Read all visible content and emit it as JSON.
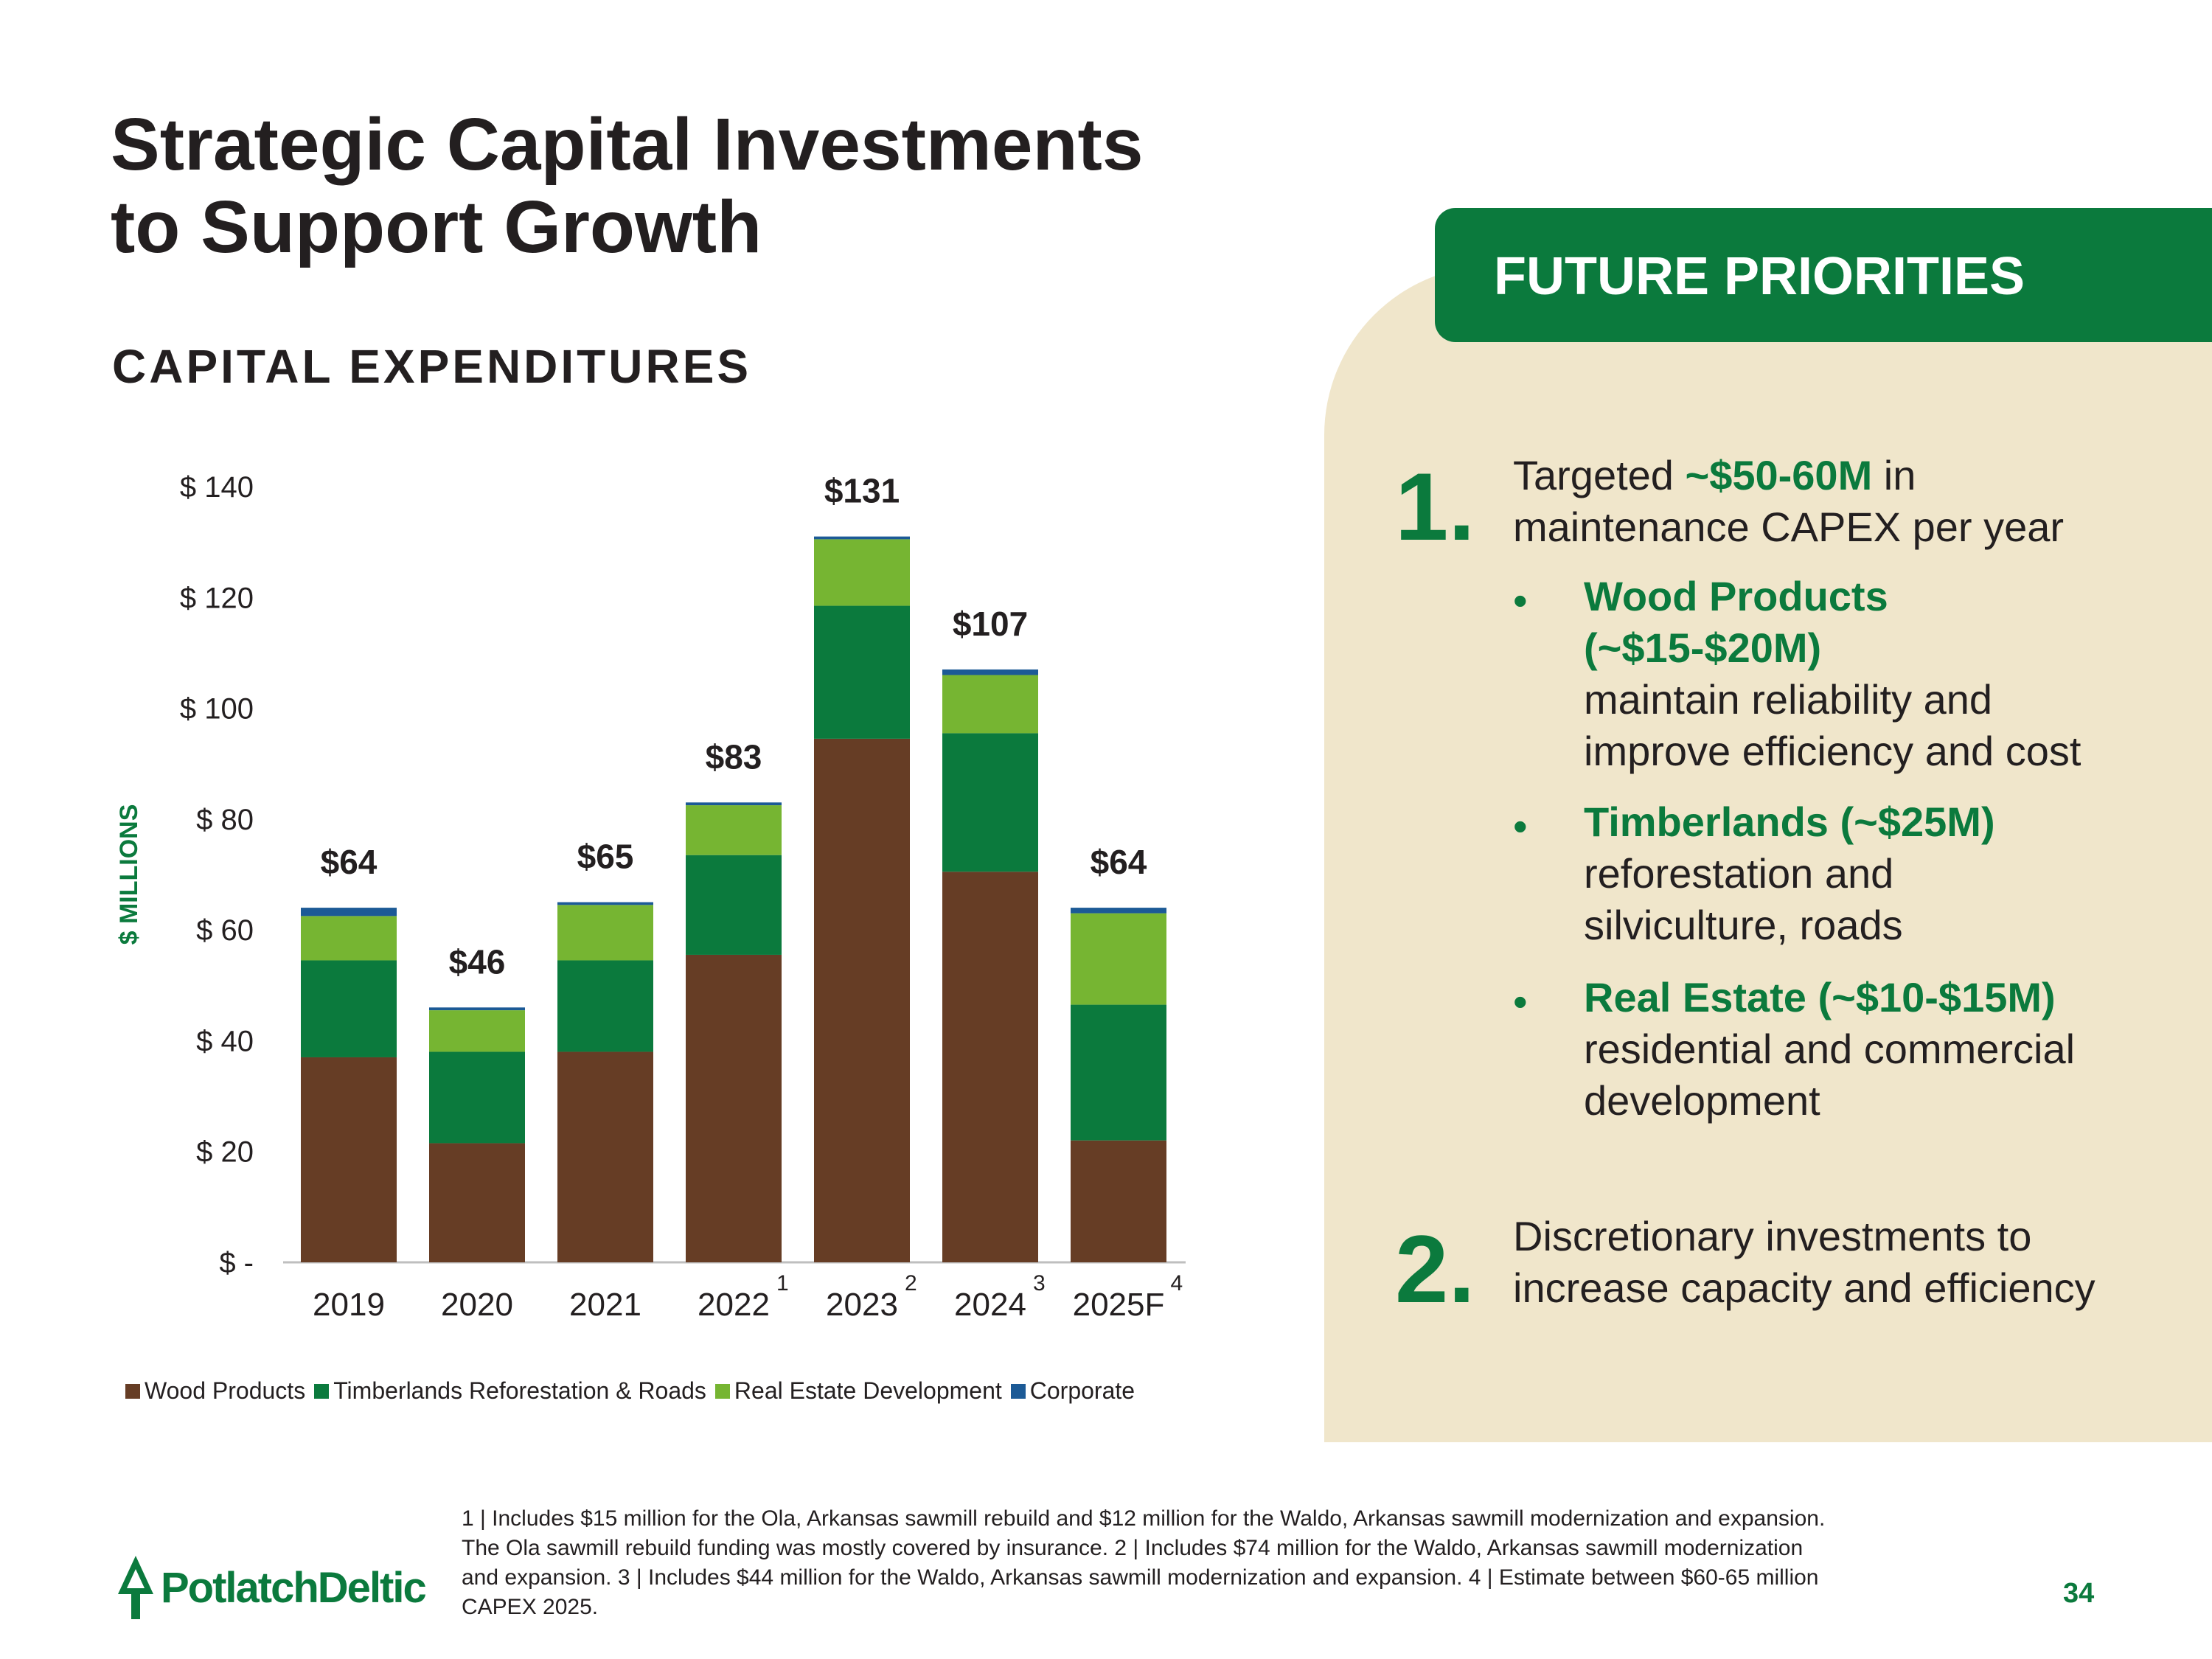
{
  "title_line1": "Strategic Capital Investments",
  "title_line2": "to Support Growth",
  "subtitle": "CAPITAL EXPENDITURES",
  "chart_data": {
    "type": "bar",
    "stacked": true,
    "ylabel": "$ MILLIONS",
    "ylim": [
      0,
      140
    ],
    "yticks": [
      0,
      20,
      40,
      60,
      80,
      100,
      120,
      140
    ],
    "ytick_labels": [
      "$ -",
      "$ 20",
      "$ 40",
      "$ 60",
      "$ 80",
      "$ 100",
      "$ 120",
      "$ 140"
    ],
    "categories": [
      "2019",
      "2020",
      "2021",
      "2022",
      "2023",
      "2024",
      "2025F"
    ],
    "superscripts": [
      "",
      "",
      "",
      "1",
      "2",
      "3",
      "4"
    ],
    "totals": [
      64,
      46,
      65,
      83,
      131,
      107,
      64
    ],
    "total_labels": [
      "$64",
      "$46",
      "$65",
      "$83",
      "$131",
      "$107",
      "$64"
    ],
    "series": [
      {
        "name": "Wood Products",
        "color": "#663d25",
        "values": [
          37,
          21.5,
          38,
          55.5,
          94.5,
          70.5,
          22
        ]
      },
      {
        "name": "Timberlands Reforestation & Roads",
        "color": "#0b7a3d",
        "values": [
          17.5,
          16.5,
          16.5,
          18,
          24,
          25,
          24.5
        ]
      },
      {
        "name": "Real Estate Development",
        "color": "#76b532",
        "values": [
          8,
          7.5,
          10,
          9,
          12,
          10.5,
          16.5
        ]
      },
      {
        "name": "Corporate",
        "color": "#1c5a96",
        "values": [
          1.5,
          0.5,
          0.5,
          0.5,
          0.5,
          1,
          1
        ]
      }
    ]
  },
  "panel": {
    "header": "FUTURE PRIORITIES",
    "item1": {
      "number": "1.",
      "line1_pre": "Targeted",
      "line1_highlight": "~$50-60M",
      "line1_post": "in",
      "line2": "maintenance CAPEX per year",
      "bullets": [
        {
          "title_l1": "Wood Products",
          "title_l2": "(~$15-$20M)",
          "desc_l1": "maintain reliability and",
          "desc_l2": "improve efficiency and cost"
        },
        {
          "title_l1": "Timberlands (~$25M)",
          "desc_l1": "reforestation and",
          "desc_l2": "silviculture, roads"
        },
        {
          "title_l1": "Real Estate (~$10-$15M)",
          "desc_l1": "residential and commercial",
          "desc_l2": "development"
        }
      ]
    },
    "item2": {
      "number": "2.",
      "line1": "Discretionary investments to",
      "line2": "increase capacity and efficiency"
    }
  },
  "footnote": {
    "l1": "1 | Includes $15 million for the Ola, Arkansas sawmill rebuild and $12 million for the Waldo, Arkansas sawmill modernization and expansion.",
    "l2": "The Ola sawmill rebuild funding was mostly covered by insurance.  2 | Includes $74 million for the Waldo, Arkansas sawmill modernization",
    "l3": "and expansion.  3 | Includes $44 million for the Waldo, Arkansas sawmill modernization and expansion.  4 | Estimate between $60-65 million",
    "l4": "CAPEX 2025."
  },
  "logo_text": "PotlatchDeltic",
  "page_number": "34"
}
